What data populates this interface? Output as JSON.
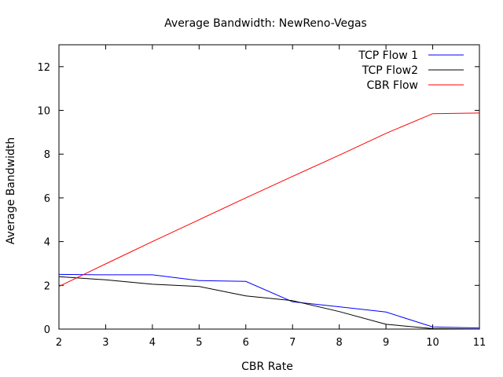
{
  "chart_data": {
    "type": "line",
    "title": "Average Bandwidth: NewReno-Vegas",
    "xlabel": "CBR Rate",
    "ylabel": "Average Bandwidth",
    "xlim": [
      2,
      11
    ],
    "ylim": [
      0,
      13
    ],
    "xticks": [
      2,
      3,
      4,
      5,
      6,
      7,
      8,
      9,
      10,
      11
    ],
    "yticks": [
      0,
      2,
      4,
      6,
      8,
      10,
      12
    ],
    "grid": false,
    "legend_position": "top-right",
    "x": [
      2,
      3,
      4,
      5,
      6,
      7,
      8,
      9,
      10,
      11
    ],
    "series": [
      {
        "name": "TCP Flow 1",
        "color": "#0000ff",
        "values": [
          2.5,
          2.48,
          2.48,
          2.22,
          2.18,
          1.25,
          1.02,
          0.78,
          0.1,
          0.05
        ]
      },
      {
        "name": "TCP Flow2",
        "color": "#000000",
        "values": [
          2.4,
          2.25,
          2.05,
          1.95,
          1.52,
          1.3,
          0.8,
          0.22,
          0.02,
          0.0
        ]
      },
      {
        "name": "CBR Flow",
        "color": "#ff0000",
        "values": [
          1.95,
          2.98,
          4.0,
          5.0,
          6.0,
          6.98,
          7.95,
          8.95,
          9.85,
          9.88
        ]
      }
    ]
  }
}
